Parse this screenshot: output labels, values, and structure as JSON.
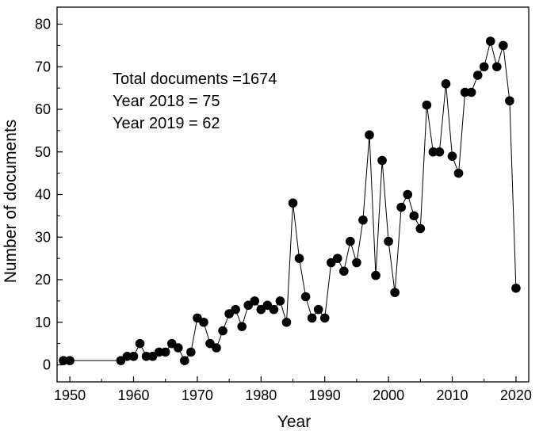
{
  "chart_data": {
    "type": "line",
    "title": "",
    "xlabel": "Year",
    "ylabel": "Number of documents",
    "xlim": [
      1948,
      2022
    ],
    "ylim": [
      -4,
      84
    ],
    "xticks": [
      1950,
      1960,
      1970,
      1980,
      1990,
      2000,
      2010,
      2020
    ],
    "yticks": [
      0,
      10,
      20,
      30,
      40,
      50,
      60,
      70,
      80
    ],
    "grid": false,
    "legend": "none",
    "marker": "circle",
    "color": "#000000",
    "annotations": [
      "Total documents =1674",
      "Year 2018 = 75",
      "Year 2019 = 62"
    ],
    "series": [
      {
        "x": [
          1949,
          1950,
          1958,
          1959,
          1960,
          1961,
          1962,
          1963,
          1964,
          1965,
          1966,
          1967,
          1968,
          1969,
          1970,
          1971,
          1972,
          1973,
          1974,
          1975,
          1976,
          1977,
          1978,
          1979,
          1980,
          1981,
          1982,
          1983,
          1984,
          1985,
          1986,
          1987,
          1988,
          1989,
          1990,
          1991,
          1992,
          1993,
          1994,
          1995,
          1996,
          1997,
          1998,
          1999,
          2000,
          2001,
          2002,
          2003,
          2004,
          2005,
          2006,
          2007,
          2008,
          2009,
          2010,
          2011,
          2012,
          2013,
          2014,
          2015,
          2016,
          2017,
          2018,
          2019,
          2020
        ],
        "y": [
          1,
          1,
          1,
          2,
          2,
          5,
          2,
          2,
          3,
          3,
          5,
          4,
          1,
          3,
          11,
          10,
          5,
          4,
          8,
          12,
          13,
          9,
          14,
          15,
          13,
          14,
          13,
          15,
          10,
          38,
          25,
          16,
          11,
          13,
          11,
          24,
          25,
          22,
          29,
          24,
          34,
          54,
          21,
          48,
          29,
          17,
          37,
          40,
          35,
          32,
          61,
          50,
          50,
          66,
          49,
          45,
          64,
          64,
          68,
          70,
          76,
          70,
          75,
          62,
          18
        ]
      }
    ]
  }
}
